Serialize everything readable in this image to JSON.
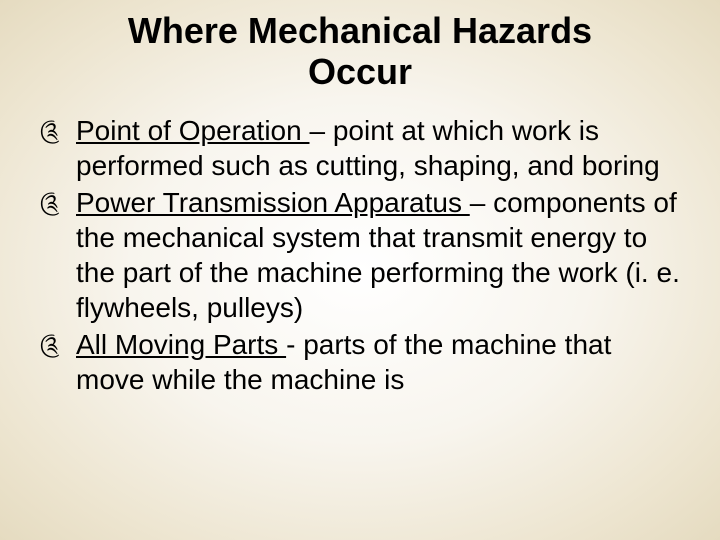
{
  "slide": {
    "title": "Where Mechanical Hazards Occur",
    "title_fontsize": 36,
    "body_fontsize": 28,
    "text_color": "#000000",
    "background_gradient": [
      "#ffffff",
      "#f8f5ee",
      "#ede5d0",
      "#e5dbc0"
    ],
    "bullet_glyph": "༊",
    "items": [
      {
        "term": "Point of Operation ",
        "separator": "– ",
        "definition": "point at which work is performed such as cutting, shaping, and boring"
      },
      {
        "term": "Power Transmission Apparatus ",
        "separator": "– ",
        "definition": "components of the mechanical system that transmit energy to the part of the machine performing the work (i. e. flywheels, pulleys)"
      },
      {
        "term": "All Moving Parts ",
        "separator": "- ",
        "definition": "parts of the machine that move while the machine is"
      }
    ]
  }
}
